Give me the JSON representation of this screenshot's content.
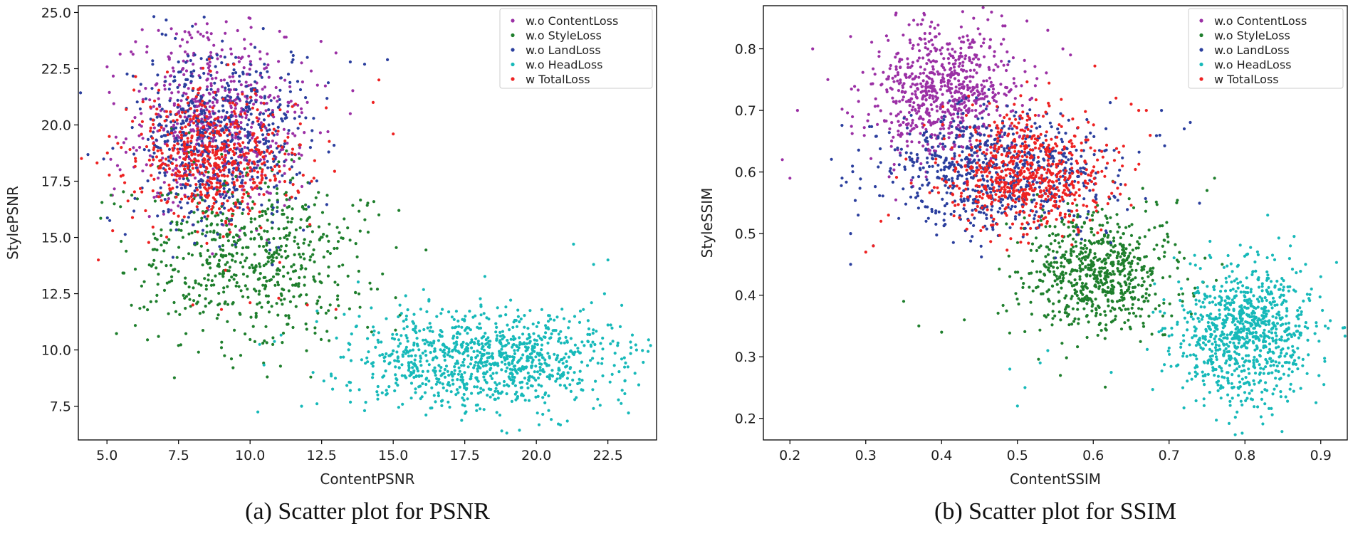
{
  "chart_data": [
    {
      "type": "scatter",
      "xlabel": "ContentPSNR",
      "ylabel": "StylePSNR",
      "xlim": [
        4.0,
        24.2
      ],
      "ylim": [
        6.0,
        25.3
      ],
      "xticks": [
        "5.0",
        "7.5",
        "10.0",
        "12.5",
        "15.0",
        "17.5",
        "20.0",
        "22.5"
      ],
      "yticks": [
        "7.5",
        "10.0",
        "12.5",
        "15.0",
        "17.5",
        "20.0",
        "22.5",
        "25.0"
      ],
      "grid": false,
      "legend_position": "top-right",
      "caption": "(a) Scatter plot for PSNR",
      "series": [
        {
          "name": "w.o ContentLoss",
          "color": "#9b30a5",
          "cluster": {
            "x_mean": 8.8,
            "x_sd": 1.5,
            "y_mean": 20.2,
            "y_sd": 2.0,
            "count": 600
          },
          "x": [
            6.0,
            6.8,
            7.2,
            7.9,
            8.5,
            9.1,
            9.8,
            10.5,
            11.2,
            12.0,
            13.0,
            13.5
          ],
          "y": [
            23.7,
            24.2,
            21.8,
            24.0,
            24.5,
            22.0,
            23.8,
            22.5,
            23.9,
            21.0,
            23.2,
            20.5
          ]
        },
        {
          "name": "w.o StyleLoss",
          "color": "#1f7f2d",
          "cluster": {
            "x_mean": 10.0,
            "x_sd": 1.9,
            "y_mean": 14.2,
            "y_sd": 1.9,
            "count": 650
          },
          "x": [
            6.8,
            7.5,
            8.2,
            9.0,
            10.5,
            11.5,
            12.8,
            13.8,
            14.5,
            15.2
          ],
          "y": [
            10.6,
            10.2,
            9.9,
            10.1,
            10.4,
            11.0,
            12.0,
            13.5,
            16.0,
            16.2
          ]
        },
        {
          "name": "w.o LandLoss",
          "color": "#2b3f9e",
          "cluster": {
            "x_mean": 8.9,
            "x_sd": 1.5,
            "y_mean": 19.3,
            "y_sd": 2.0,
            "count": 650
          },
          "x": [
            7.5,
            8.5,
            9.5,
            10.5,
            11.5,
            12.0,
            13.5,
            14.0,
            14.8
          ],
          "y": [
            22.8,
            22.9,
            23.0,
            22.7,
            22.9,
            23.0,
            22.8,
            22.7,
            22.9
          ]
        },
        {
          "name": "w.o HeadLoss",
          "color": "#17b9b9",
          "cluster": {
            "x_mean": 18.3,
            "x_sd": 2.4,
            "y_mean": 9.6,
            "y_sd": 1.1,
            "count": 1000
          },
          "x": [
            11.8,
            12.2,
            13.5,
            14.0,
            21.3,
            22.0,
            22.5,
            23.5
          ],
          "y": [
            7.5,
            9.0,
            8.2,
            7.3,
            14.7,
            13.8,
            14.0,
            10.0
          ]
        },
        {
          "name": "w TotalLoss",
          "color": "#ee2222",
          "cluster": {
            "x_mean": 8.7,
            "x_sd": 1.4,
            "y_mean": 18.6,
            "y_sd": 1.5,
            "count": 550
          },
          "x": [
            4.7,
            5.2,
            5.5,
            8.0,
            9.0,
            10.0,
            11.0,
            12.0,
            13.0,
            14.3,
            14.5,
            15.0
          ],
          "y": [
            14.0,
            15.3,
            19.0,
            12.0,
            11.8,
            12.1,
            12.3,
            12.0,
            11.8,
            21.0,
            22.0,
            19.6
          ]
        }
      ]
    },
    {
      "type": "scatter",
      "xlabel": "ContentSSIM",
      "ylabel": "StyleSSIM",
      "xlim": [
        0.165,
        0.935
      ],
      "ylim": [
        0.165,
        0.87
      ],
      "xticks": [
        "0.2",
        "0.3",
        "0.4",
        "0.5",
        "0.6",
        "0.7",
        "0.8",
        "0.9"
      ],
      "yticks": [
        "0.2",
        "0.3",
        "0.4",
        "0.5",
        "0.6",
        "0.7",
        "0.8"
      ],
      "grid": false,
      "legend_position": "top-right",
      "caption": "(b) Scatter plot for SSIM",
      "series": [
        {
          "name": "w.o ContentLoss",
          "color": "#9b30a5",
          "cluster": {
            "x_mean": 0.4,
            "x_sd": 0.048,
            "y_mean": 0.73,
            "y_sd": 0.055,
            "count": 750
          },
          "x": [
            0.19,
            0.2,
            0.21,
            0.23,
            0.25,
            0.28,
            0.56,
            0.57,
            0.54
          ],
          "y": [
            0.62,
            0.59,
            0.7,
            0.8,
            0.75,
            0.82,
            0.8,
            0.79,
            0.83
          ]
        },
        {
          "name": "w.o StyleLoss",
          "color": "#1f7f2d",
          "cluster": {
            "x_mean": 0.605,
            "x_sd": 0.05,
            "y_mean": 0.44,
            "y_sd": 0.05,
            "count": 700
          },
          "x": [
            0.35,
            0.37,
            0.4,
            0.43,
            0.71,
            0.72,
            0.75,
            0.76
          ],
          "y": [
            0.39,
            0.35,
            0.34,
            0.36,
            0.55,
            0.46,
            0.57,
            0.59
          ]
        },
        {
          "name": "w.o LandLoss",
          "color": "#2b3f9e",
          "cluster": {
            "x_mean": 0.475,
            "x_sd": 0.075,
            "y_mean": 0.6,
            "y_sd": 0.05,
            "count": 750
          },
          "x": [
            0.28,
            0.28,
            0.29,
            0.31,
            0.69,
            0.72
          ],
          "y": [
            0.45,
            0.5,
            0.53,
            0.48,
            0.7,
            0.67
          ]
        },
        {
          "name": "w.o HeadLoss",
          "color": "#17b9b9",
          "cluster": {
            "x_mean": 0.8,
            "x_sd": 0.045,
            "y_mean": 0.34,
            "y_sd": 0.055,
            "count": 900
          },
          "x": [
            0.49,
            0.5,
            0.51,
            0.53,
            0.54,
            0.83,
            0.86,
            0.88,
            0.9
          ],
          "y": [
            0.28,
            0.22,
            0.25,
            0.29,
            0.31,
            0.53,
            0.48,
            0.45,
            0.43
          ]
        },
        {
          "name": "w TotalLoss",
          "color": "#ee2222",
          "cluster": {
            "x_mean": 0.51,
            "x_sd": 0.055,
            "y_mean": 0.6,
            "y_sd": 0.05,
            "count": 650
          },
          "x": [
            0.3,
            0.31,
            0.32,
            0.33,
            0.63,
            0.65,
            0.66,
            0.67
          ],
          "y": [
            0.47,
            0.48,
            0.52,
            0.53,
            0.72,
            0.71,
            0.7,
            0.7
          ]
        }
      ]
    }
  ]
}
